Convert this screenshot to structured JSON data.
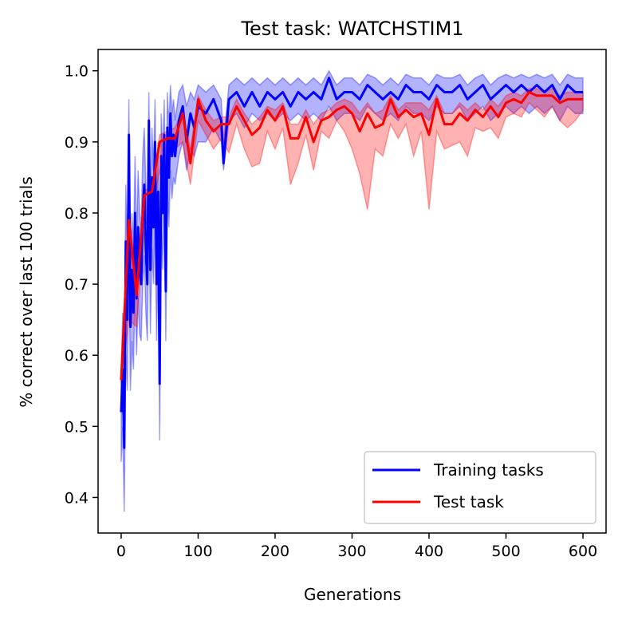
{
  "chart_data": {
    "type": "line",
    "title": "Test task: WATCHSTIM1",
    "xlabel": "Generations",
    "ylabel": "% correct over last 100 trials",
    "xlim": [
      -30,
      630
    ],
    "ylim": [
      0.35,
      1.03
    ],
    "x_ticks": [
      0,
      100,
      200,
      300,
      400,
      500,
      600
    ],
    "y_ticks": [
      0.4,
      0.5,
      0.6,
      0.7,
      0.8,
      0.9,
      1.0
    ],
    "x_tick_labels": [
      "0",
      "100",
      "200",
      "300",
      "400",
      "500",
      "600"
    ],
    "y_tick_labels": [
      "0.4",
      "0.5",
      "0.6",
      "0.7",
      "0.8",
      "0.9",
      "1.0"
    ],
    "grid": false,
    "legend_position": "lower-right",
    "series": [
      {
        "name": "Training tasks",
        "color": "#0000ff",
        "band_color": "#0000ff",
        "x": [
          0,
          2,
          4,
          6,
          8,
          10,
          12,
          14,
          16,
          18,
          20,
          22,
          24,
          26,
          28,
          30,
          32,
          34,
          36,
          38,
          40,
          42,
          44,
          46,
          48,
          50,
          52,
          54,
          56,
          58,
          60,
          62,
          64,
          66,
          68,
          70,
          75,
          80,
          85,
          90,
          95,
          100,
          110,
          120,
          130,
          133,
          140,
          150,
          160,
          170,
          180,
          190,
          200,
          210,
          220,
          230,
          240,
          250,
          260,
          270,
          280,
          290,
          300,
          310,
          320,
          330,
          340,
          350,
          360,
          370,
          380,
          390,
          400,
          410,
          420,
          430,
          440,
          450,
          460,
          470,
          480,
          490,
          500,
          510,
          520,
          530,
          540,
          550,
          560,
          570,
          580,
          590,
          600
        ],
        "values": [
          0.52,
          0.58,
          0.47,
          0.76,
          0.65,
          0.91,
          0.64,
          0.72,
          0.66,
          0.8,
          0.68,
          0.78,
          0.72,
          0.7,
          0.8,
          0.84,
          0.75,
          0.7,
          0.93,
          0.72,
          0.85,
          0.78,
          0.9,
          0.7,
          0.83,
          0.56,
          0.88,
          0.8,
          0.91,
          0.69,
          0.92,
          0.85,
          0.94,
          0.88,
          0.91,
          0.88,
          0.93,
          0.95,
          0.9,
          0.94,
          0.92,
          0.95,
          0.94,
          0.96,
          0.93,
          0.87,
          0.96,
          0.97,
          0.95,
          0.97,
          0.95,
          0.97,
          0.96,
          0.97,
          0.95,
          0.97,
          0.96,
          0.97,
          0.96,
          0.99,
          0.96,
          0.97,
          0.97,
          0.96,
          0.98,
          0.97,
          0.96,
          0.97,
          0.96,
          0.98,
          0.97,
          0.97,
          0.96,
          0.98,
          0.97,
          0.97,
          0.98,
          0.96,
          0.97,
          0.98,
          0.96,
          0.97,
          0.98,
          0.97,
          0.98,
          0.97,
          0.98,
          0.97,
          0.98,
          0.96,
          0.98,
          0.97,
          0.97
        ],
        "lower": [
          0.45,
          0.5,
          0.38,
          0.6,
          0.55,
          0.75,
          0.55,
          0.62,
          0.58,
          0.7,
          0.6,
          0.68,
          0.63,
          0.62,
          0.7,
          0.74,
          0.66,
          0.62,
          0.8,
          0.63,
          0.75,
          0.7,
          0.8,
          0.62,
          0.74,
          0.48,
          0.78,
          0.72,
          0.82,
          0.62,
          0.84,
          0.78,
          0.86,
          0.82,
          0.85,
          0.84,
          0.88,
          0.9,
          0.86,
          0.89,
          0.88,
          0.9,
          0.9,
          0.92,
          0.9,
          0.86,
          0.93,
          0.94,
          0.92,
          0.94,
          0.93,
          0.94,
          0.93,
          0.94,
          0.93,
          0.94,
          0.93,
          0.94,
          0.93,
          0.95,
          0.93,
          0.94,
          0.94,
          0.93,
          0.95,
          0.94,
          0.93,
          0.94,
          0.93,
          0.95,
          0.94,
          0.94,
          0.93,
          0.95,
          0.94,
          0.94,
          0.95,
          0.93,
          0.94,
          0.95,
          0.93,
          0.94,
          0.95,
          0.94,
          0.95,
          0.94,
          0.95,
          0.94,
          0.95,
          0.93,
          0.95,
          0.94,
          0.94
        ],
        "upper": [
          0.58,
          0.66,
          0.56,
          0.84,
          0.74,
          0.96,
          0.72,
          0.8,
          0.74,
          0.88,
          0.76,
          0.86,
          0.8,
          0.78,
          0.88,
          0.92,
          0.84,
          0.78,
          0.97,
          0.8,
          0.92,
          0.86,
          0.96,
          0.78,
          0.9,
          0.64,
          0.94,
          0.88,
          0.96,
          0.76,
          0.97,
          0.92,
          0.98,
          0.94,
          0.96,
          0.93,
          0.97,
          0.98,
          0.95,
          0.97,
          0.96,
          0.98,
          0.97,
          0.98,
          0.96,
          0.9,
          0.98,
          0.99,
          0.98,
          0.99,
          0.98,
          0.99,
          0.98,
          0.99,
          0.98,
          0.99,
          0.98,
          0.99,
          0.98,
          1.0,
          0.98,
          0.99,
          0.99,
          0.98,
          0.995,
          0.99,
          0.98,
          0.99,
          0.98,
          0.995,
          0.99,
          0.99,
          0.98,
          0.995,
          0.99,
          0.99,
          0.995,
          0.98,
          0.99,
          0.995,
          0.98,
          0.99,
          0.995,
          0.99,
          0.995,
          0.99,
          0.995,
          0.99,
          0.995,
          0.98,
          0.995,
          0.99,
          0.99
        ]
      },
      {
        "name": "Test task",
        "color": "#ff0000",
        "band_color": "#ff0000",
        "x": [
          0,
          10,
          20,
          30,
          40,
          50,
          60,
          70,
          80,
          90,
          100,
          110,
          120,
          130,
          140,
          150,
          160,
          170,
          180,
          190,
          200,
          210,
          220,
          230,
          240,
          250,
          260,
          270,
          280,
          290,
          300,
          310,
          320,
          330,
          340,
          350,
          360,
          370,
          380,
          390,
          400,
          410,
          420,
          430,
          440,
          450,
          460,
          470,
          480,
          490,
          500,
          510,
          520,
          530,
          540,
          550,
          560,
          570,
          580,
          590,
          600
        ],
        "values": [
          0.565,
          0.79,
          0.685,
          0.825,
          0.83,
          0.9,
          0.905,
          0.905,
          0.94,
          0.87,
          0.96,
          0.93,
          0.915,
          0.925,
          0.925,
          0.95,
          0.93,
          0.91,
          0.92,
          0.945,
          0.93,
          0.95,
          0.905,
          0.905,
          0.935,
          0.9,
          0.93,
          0.935,
          0.945,
          0.95,
          0.94,
          0.915,
          0.94,
          0.92,
          0.925,
          0.96,
          0.935,
          0.945,
          0.935,
          0.94,
          0.91,
          0.96,
          0.925,
          0.925,
          0.94,
          0.93,
          0.945,
          0.935,
          0.95,
          0.935,
          0.955,
          0.96,
          0.955,
          0.97,
          0.965,
          0.965,
          0.965,
          0.955,
          0.96,
          0.96,
          0.96
        ],
        "lower": [
          0.56,
          0.65,
          0.64,
          0.78,
          0.8,
          0.86,
          0.88,
          0.89,
          0.9,
          0.84,
          0.93,
          0.91,
          0.89,
          0.905,
          0.885,
          0.925,
          0.89,
          0.865,
          0.87,
          0.915,
          0.89,
          0.92,
          0.84,
          0.87,
          0.91,
          0.86,
          0.915,
          0.905,
          0.93,
          0.915,
          0.89,
          0.855,
          0.805,
          0.89,
          0.88,
          0.925,
          0.905,
          0.925,
          0.88,
          0.915,
          0.805,
          0.915,
          0.89,
          0.895,
          0.9,
          0.88,
          0.92,
          0.915,
          0.92,
          0.905,
          0.935,
          0.94,
          0.935,
          0.955,
          0.945,
          0.935,
          0.95,
          0.93,
          0.92,
          0.93,
          0.945
        ],
        "upper": [
          0.57,
          0.8,
          0.7,
          0.83,
          0.84,
          0.91,
          0.915,
          0.92,
          0.945,
          0.89,
          0.965,
          0.945,
          0.93,
          0.935,
          0.935,
          0.96,
          0.94,
          0.925,
          0.935,
          0.95,
          0.945,
          0.955,
          0.925,
          0.925,
          0.945,
          0.925,
          0.94,
          0.945,
          0.955,
          0.96,
          0.955,
          0.94,
          0.955,
          0.94,
          0.945,
          0.965,
          0.945,
          0.955,
          0.955,
          0.955,
          0.945,
          0.965,
          0.94,
          0.94,
          0.955,
          0.945,
          0.955,
          0.945,
          0.96,
          0.95,
          0.965,
          0.97,
          0.965,
          0.975,
          0.975,
          0.97,
          0.975,
          0.965,
          0.97,
          0.97,
          0.97
        ]
      }
    ]
  }
}
